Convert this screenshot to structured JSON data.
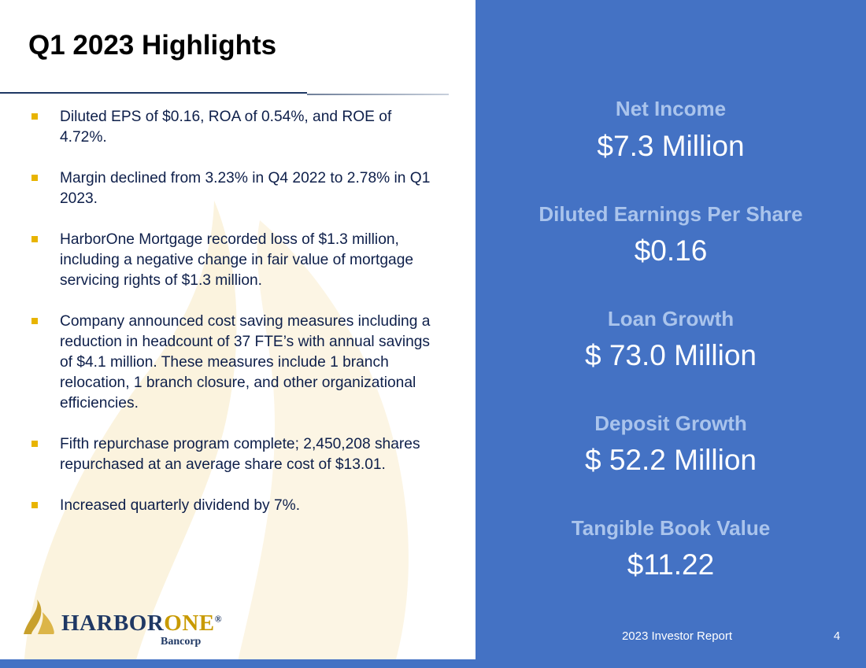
{
  "slide": {
    "title": "Q1 2023 Highlights",
    "bullets": [
      "Diluted EPS of $0.16, ROA of 0.54%, and ROE of 4.72%.",
      "Margin declined from 3.23% in Q4 2022 to 2.78% in Q1 2023.",
      "HarborOne Mortgage recorded loss of $1.3 million, including a negative change in fair value of mortgage servicing rights of $1.3 million.",
      "Company announced cost saving measures including a reduction in headcount of 37 FTE’s with annual savings of $4.1 million.  These measures include 1 branch relocation, 1 branch closure, and other organizational efficiencies.",
      "Fifth repurchase program complete; 2,450,208 shares repurchased at an average share cost of $13.01.",
      "Increased quarterly dividend by 7%."
    ],
    "metrics": [
      {
        "label": "Net Income",
        "value": "$7.3 Million"
      },
      {
        "label": "Diluted Earnings Per Share",
        "value": "$0.16"
      },
      {
        "label": "Loan Growth",
        "value": "$ 73.0 Million"
      },
      {
        "label": "Deposit Growth",
        "value": "$ 52.2 Million"
      },
      {
        "label": "Tangible Book Value",
        "value": "$11.22"
      }
    ],
    "footer": "2023 Investor Report",
    "page_number": "4"
  },
  "logo": {
    "word_part1": "HARBOR",
    "word_part2": "ONE",
    "registered": "®",
    "sub": "Bancorp"
  },
  "colors": {
    "panel_blue": "#4472c4",
    "metric_label": "#aac4ec",
    "bullet_gold": "#e8b400",
    "navy": "#1f3864"
  }
}
